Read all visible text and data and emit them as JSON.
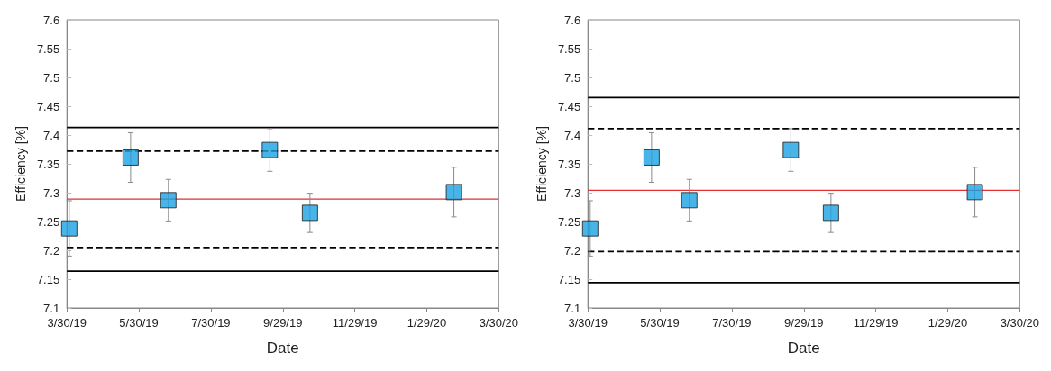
{
  "chart_data": [
    {
      "type": "scatter",
      "xlabel": "Date",
      "ylabel": "Efficiency [%]",
      "marker": "square",
      "grid": false,
      "x": [
        "2019-04-01",
        "2019-05-23",
        "2019-06-24",
        "2019-09-18",
        "2019-10-22",
        "2020-02-21"
      ],
      "series": [
        {
          "color": "#1ba1e2",
          "values": [
            7.238,
            7.361,
            7.287,
            7.374,
            7.265,
            7.301
          ],
          "errors": [
            0.048,
            0.043,
            0.036,
            0.037,
            0.034,
            0.043
          ]
        }
      ],
      "xlim": [
        "2019-03-30",
        "2020-03-30"
      ],
      "xticks": [
        {
          "value": "2019-03-30",
          "label": "3/30/19"
        },
        {
          "value": "2019-05-30",
          "label": "5/30/19"
        },
        {
          "value": "2019-07-30",
          "label": "7/30/19"
        },
        {
          "value": "2019-09-29",
          "label": "9/29/19"
        },
        {
          "value": "2019-11-29",
          "label": "11/29/19"
        },
        {
          "value": "2020-01-29",
          "label": "1/29/20"
        },
        {
          "value": "2020-03-30",
          "label": "3/30/20"
        }
      ],
      "ylim": [
        7.1,
        7.6
      ],
      "yticks": [
        7.1,
        7.15,
        7.2,
        7.25,
        7.3,
        7.35,
        7.4,
        7.45,
        7.5,
        7.55,
        7.6
      ],
      "ref_lines": [
        {
          "axis": "y",
          "value": 7.413,
          "color": "#000000",
          "line_style": "solid"
        },
        {
          "axis": "y",
          "value": 7.372,
          "color": "#000000",
          "line_style": "dashed"
        },
        {
          "axis": "y",
          "value": 7.289,
          "color": "#e03030",
          "line_style": "solid"
        },
        {
          "axis": "y",
          "value": 7.205,
          "color": "#000000",
          "line_style": "dashed"
        },
        {
          "axis": "y",
          "value": 7.164,
          "color": "#000000",
          "line_style": "solid"
        }
      ]
    },
    {
      "type": "scatter",
      "xlabel": "Date",
      "ylabel": "Efficiency [%]",
      "marker": "square",
      "grid": false,
      "x": [
        "2019-04-01",
        "2019-05-23",
        "2019-06-24",
        "2019-09-18",
        "2019-10-22",
        "2020-02-21"
      ],
      "series": [
        {
          "color": "#1ba1e2",
          "values": [
            7.238,
            7.361,
            7.287,
            7.374,
            7.265,
            7.301
          ],
          "errors": [
            0.048,
            0.043,
            0.036,
            0.037,
            0.034,
            0.043
          ]
        }
      ],
      "xlim": [
        "2019-03-30",
        "2020-03-30"
      ],
      "xticks": [
        {
          "value": "2019-03-30",
          "label": "3/30/19"
        },
        {
          "value": "2019-05-30",
          "label": "5/30/19"
        },
        {
          "value": "2019-07-30",
          "label": "7/30/19"
        },
        {
          "value": "2019-09-29",
          "label": "9/29/19"
        },
        {
          "value": "2019-11-29",
          "label": "11/29/19"
        },
        {
          "value": "2020-01-29",
          "label": "1/29/20"
        },
        {
          "value": "2020-03-30",
          "label": "3/30/20"
        }
      ],
      "ylim": [
        7.1,
        7.6
      ],
      "yticks": [
        7.1,
        7.15,
        7.2,
        7.25,
        7.3,
        7.35,
        7.4,
        7.45,
        7.5,
        7.55,
        7.6
      ],
      "ref_lines": [
        {
          "axis": "y",
          "value": 7.465,
          "color": "#000000",
          "line_style": "solid"
        },
        {
          "axis": "y",
          "value": 7.411,
          "color": "#000000",
          "line_style": "dashed"
        },
        {
          "axis": "y",
          "value": 7.304,
          "color": "#e03030",
          "line_style": "solid"
        },
        {
          "axis": "y",
          "value": 7.198,
          "color": "#000000",
          "line_style": "dashed"
        },
        {
          "axis": "y",
          "value": 7.144,
          "color": "#000000",
          "line_style": "solid"
        }
      ]
    }
  ]
}
